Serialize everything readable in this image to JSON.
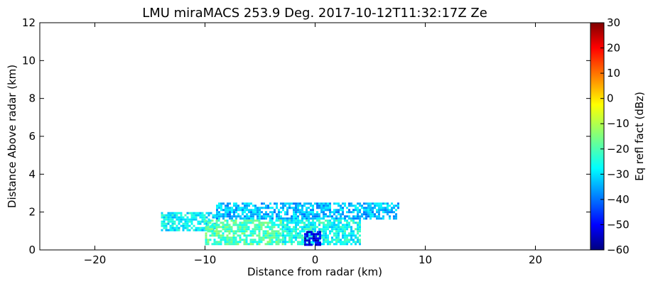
{
  "chart_data": {
    "type": "heatmap",
    "title": "LMU miraMACS 253.9 Deg. 2017-10-12T11:32:17Z  Ze",
    "xlabel": "Distance from radar (km)",
    "ylabel": "Distance Above radar  (km)",
    "xlim": [
      -25,
      25
    ],
    "ylim": [
      0,
      12
    ],
    "xticks": [
      -20,
      -10,
      0,
      10,
      20
    ],
    "xtick_labels": [
      "−20",
      "−10",
      "0",
      "10",
      "20"
    ],
    "yticks": [
      0,
      2,
      4,
      6,
      8,
      10,
      12
    ],
    "ytick_labels": [
      "0",
      "2",
      "4",
      "6",
      "8",
      "10",
      "12"
    ],
    "grid": false,
    "colorbar": {
      "label": "Eq refl fact (dBz)",
      "colormap": "jet",
      "range": [
        -60,
        30
      ],
      "ticks": [
        -60,
        -50,
        -40,
        -30,
        -20,
        -10,
        0,
        10,
        20,
        30
      ],
      "tick_labels": [
        "−60",
        "−50",
        "−40",
        "−30",
        "−20",
        "−10",
        "0",
        "10",
        "20",
        "30"
      ]
    },
    "echo_regions": [
      {
        "x_range": [
          -14,
          -9
        ],
        "y_range": [
          1.0,
          2.0
        ],
        "ze": -27
      },
      {
        "x_range": [
          -9,
          7.6
        ],
        "y_range": [
          1.6,
          2.5
        ],
        "ze": -32
      },
      {
        "x_range": [
          -10,
          -3
        ],
        "y_range": [
          0.3,
          1.6
        ],
        "ze": -20
      },
      {
        "x_range": [
          -3,
          4
        ],
        "y_range": [
          0.3,
          1.6
        ],
        "ze": -25
      },
      {
        "x_range": [
          -1,
          0.5
        ],
        "y_range": [
          0.3,
          1.0
        ],
        "ze": -50
      }
    ]
  }
}
